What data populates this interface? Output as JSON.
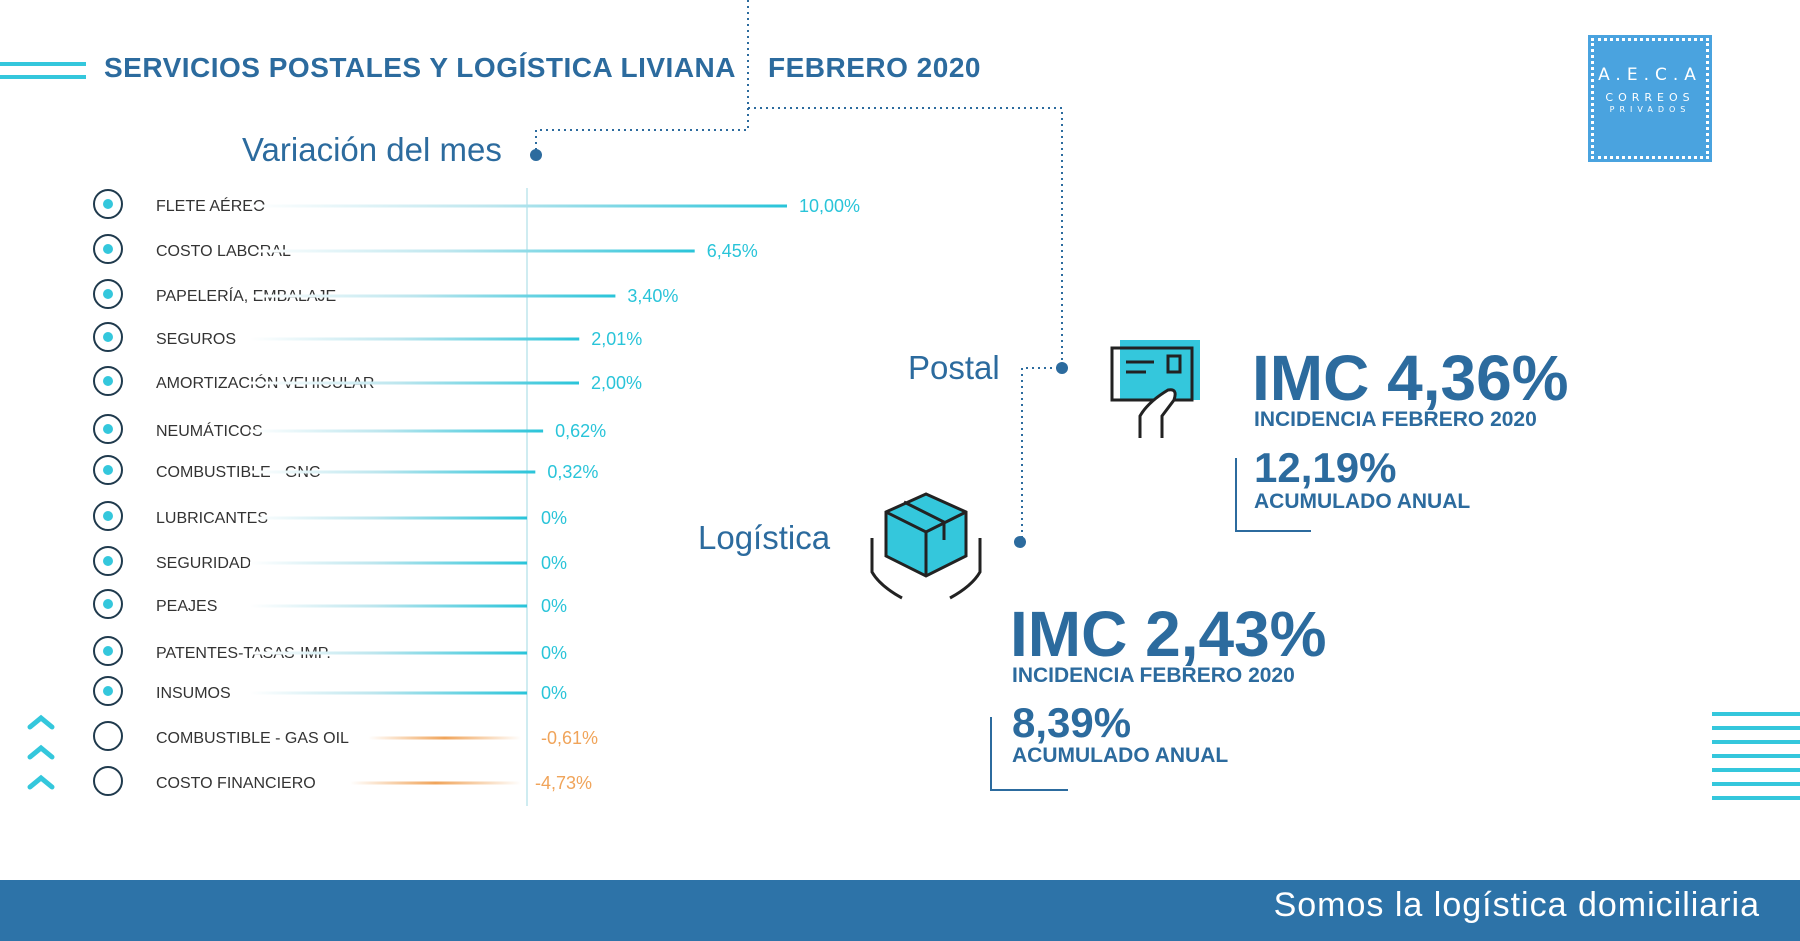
{
  "header": {
    "title": "SERVICIOS POSTALES Y LOGÍSTICA LIVIANA",
    "month": "FEBRERO 2020"
  },
  "logo": {
    "line1": "A.E.C.A",
    "line2": "CORREOS",
    "line3": "PRIVADOS"
  },
  "section_labels": {
    "variation": "Variación del mes",
    "postal": "Postal",
    "logistica": "Logística"
  },
  "postal": {
    "imc": "IMC 4,36%",
    "incidence": "INCIDENCIA FEBRERO 2020",
    "annual_value": "12,19%",
    "annual_label": "ACUMULADO ANUAL"
  },
  "logistica": {
    "imc": "IMC 2,43%",
    "incidence": "INCIDENCIA FEBRERO 2020",
    "annual_value": "8,39%",
    "annual_label": "ACUMULADO ANUAL"
  },
  "footer": {
    "tagline": "Somos la logística domiciliaria"
  },
  "colors": {
    "positive": "#29c4d9",
    "negative": "#f0a45a",
    "primary": "#2c6b9e",
    "footer": "#2d73a8"
  },
  "chart_data": {
    "type": "bar",
    "orientation": "horizontal",
    "title": "Variación del mes",
    "categories": [
      "FLETE AÉREO",
      "COSTO LABORAL",
      "PAPELERÍA, EMBALAJE",
      "SEGUROS",
      "AMORTIZACIÓN VEHICULAR",
      "NEUMÁTICOS",
      "COMBUSTIBLE - GNC",
      "LUBRICANTES",
      "SEGURIDAD",
      "PEAJES",
      "PATENTES-TASAS-IMP.",
      "INSUMOS",
      "COMBUSTIBLE - GAS OIL",
      "COSTO FINANCIERO"
    ],
    "values": [
      10.0,
      6.45,
      3.4,
      2.01,
      2.0,
      0.62,
      0.32,
      0,
      0,
      0,
      0,
      0,
      -0.61,
      -4.73
    ],
    "value_labels": [
      "10,00%",
      "6,45%",
      "3,40%",
      "2,01%",
      "2,00%",
      "0,62%",
      "0,32%",
      "0%",
      "0%",
      "0%",
      "0%",
      "0%",
      "-0,61%",
      "-4,73%"
    ],
    "icons": [
      "airplane-cloud-icon",
      "money-coins-icon",
      "package-icon",
      "insurance-box-icon",
      "truck-icon",
      "tire-icon",
      "gas-cylinder-icon",
      "oil-can-icon",
      "security-guard-icon",
      "toll-barrier-icon",
      "tax-ticket-icon",
      "clipboard-icon",
      "fuel-pump-icon",
      "pie-chart-icon"
    ],
    "xlim": [
      -5,
      10
    ]
  }
}
